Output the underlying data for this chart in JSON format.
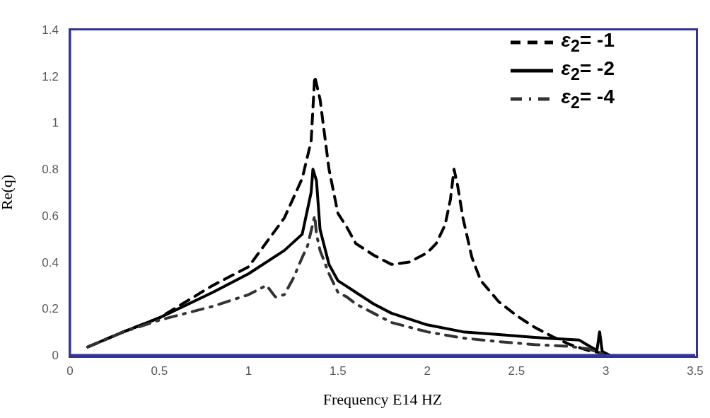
{
  "chart_data": {
    "type": "line",
    "xlabel": "Frequency E14 HZ",
    "ylabel": "Re(q)",
    "xlim": [
      0,
      3.5
    ],
    "xticks": [
      0,
      0.5,
      1,
      1.5,
      2,
      2.5,
      3,
      3.5
    ],
    "ylim": [
      0,
      1.4
    ],
    "yticks": [
      0,
      0.2,
      0.4,
      0.6,
      0.8,
      1,
      1.2,
      1.4
    ],
    "grid": false,
    "legend": "top right",
    "marker": "none",
    "series": [
      {
        "name": "ε$_{2}$= -1",
        "color": "#000000",
        "line_style": "dashed",
        "x": [
          0.1,
          0.3,
          0.5,
          0.8,
          1.0,
          1.2,
          1.3,
          1.35,
          1.37,
          1.4,
          1.45,
          1.5,
          1.55,
          1.6,
          1.7,
          1.8,
          1.9,
          2.0,
          2.05,
          2.1,
          2.13,
          2.15,
          2.17,
          2.2,
          2.25,
          2.3,
          2.4,
          2.5,
          2.6,
          2.7,
          2.8,
          2.9,
          3.0,
          3.02
        ],
        "values": [
          0.035,
          0.1,
          0.16,
          0.3,
          0.38,
          0.59,
          0.76,
          0.92,
          1.2,
          1.1,
          0.8,
          0.61,
          0.55,
          0.48,
          0.43,
          0.39,
          0.4,
          0.44,
          0.48,
          0.56,
          0.67,
          0.8,
          0.73,
          0.59,
          0.42,
          0.32,
          0.23,
          0.17,
          0.12,
          0.08,
          0.045,
          0.02,
          0.005,
          0
        ]
      },
      {
        "name": "ε$_{2}$= -2",
        "color": "#000000",
        "line_style": "solid",
        "x": [
          0.1,
          0.3,
          0.5,
          0.8,
          1.0,
          1.2,
          1.3,
          1.35,
          1.36,
          1.38,
          1.4,
          1.45,
          1.5,
          1.54,
          1.6,
          1.7,
          1.8,
          2.0,
          2.2,
          2.4,
          2.6,
          2.8,
          2.85,
          2.9,
          2.95,
          2.965,
          2.98,
          3.02
        ],
        "values": [
          0.035,
          0.1,
          0.16,
          0.27,
          0.35,
          0.45,
          0.52,
          0.7,
          0.8,
          0.75,
          0.54,
          0.39,
          0.32,
          0.3,
          0.27,
          0.22,
          0.18,
          0.13,
          0.1,
          0.088,
          0.076,
          0.067,
          0.065,
          0.042,
          0.02,
          0.1,
          0.015,
          0
        ]
      },
      {
        "name": "ε$_{2}$= -4",
        "color": "#333333",
        "line_style": "dashdot",
        "x": [
          0.1,
          0.3,
          0.5,
          0.8,
          1.0,
          1.1,
          1.15,
          1.2,
          1.25,
          1.3,
          1.33,
          1.37,
          1.38,
          1.4,
          1.45,
          1.5,
          1.55,
          1.6,
          1.7,
          1.8,
          2.0,
          2.2,
          2.4,
          2.6,
          2.8,
          2.9,
          3.0
        ],
        "values": [
          0.035,
          0.1,
          0.15,
          0.21,
          0.26,
          0.3,
          0.25,
          0.26,
          0.33,
          0.42,
          0.47,
          0.6,
          0.52,
          0.45,
          0.35,
          0.27,
          0.25,
          0.22,
          0.18,
          0.14,
          0.1,
          0.073,
          0.058,
          0.045,
          0.037,
          0.027,
          0
        ]
      }
    ]
  }
}
